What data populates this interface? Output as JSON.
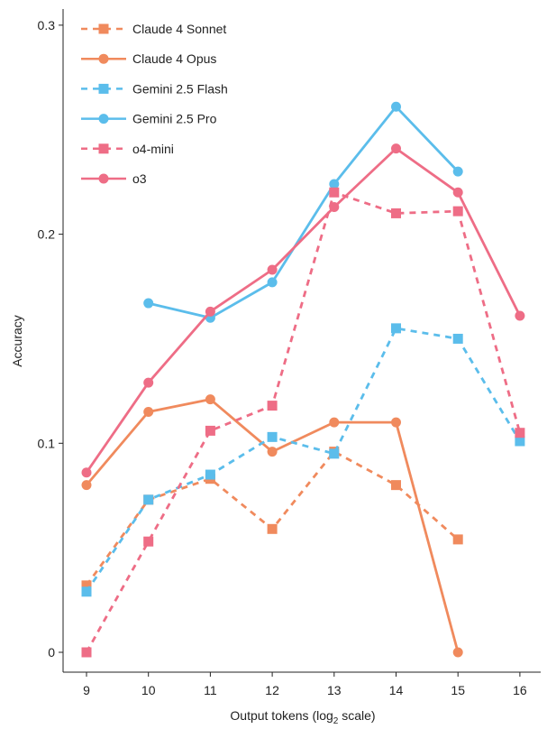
{
  "chart_data": {
    "type": "line",
    "xlabel": "Output tokens (log",
    "xlabel_sub": "2",
    "xlabel_tail": " scale)",
    "ylabel": "Accuracy",
    "x_ticks": [
      9,
      10,
      11,
      12,
      13,
      14,
      15,
      16
    ],
    "y_ticks": [
      0,
      0.1,
      0.2,
      0.3
    ],
    "y_tick_labels": [
      "0",
      "0.1",
      "0.2",
      "0.3"
    ],
    "xlim": [
      9,
      16
    ],
    "ylim": [
      0,
      0.3
    ],
    "grid": false,
    "legend_position": "top-left",
    "series": [
      {
        "name": "Claude 4 Sonnet",
        "color": "#F08A5D",
        "marker": "square",
        "dashed": true,
        "x": [
          9,
          10,
          11,
          12,
          13,
          14,
          15
        ],
        "values": [
          0.032,
          0.073,
          0.083,
          0.059,
          0.096,
          0.08,
          0.054
        ]
      },
      {
        "name": "Claude 4 Opus",
        "color": "#F08A5D",
        "marker": "circle",
        "dashed": false,
        "x": [
          9,
          10,
          11,
          12,
          13,
          14,
          15
        ],
        "values": [
          0.08,
          0.115,
          0.121,
          0.096,
          0.11,
          0.11,
          0.0
        ]
      },
      {
        "name": "Gemini 2.5 Flash",
        "color": "#5BBDEB",
        "marker": "square",
        "dashed": true,
        "x": [
          9,
          10,
          11,
          12,
          13,
          14,
          15,
          16
        ],
        "values": [
          0.029,
          0.073,
          0.085,
          0.103,
          0.095,
          0.155,
          0.15,
          0.101
        ]
      },
      {
        "name": "Gemini 2.5 Pro",
        "color": "#5BBDEB",
        "marker": "circle",
        "dashed": false,
        "x": [
          10,
          11,
          12,
          13,
          14,
          15
        ],
        "values": [
          0.167,
          0.16,
          0.177,
          0.224,
          0.261,
          0.23
        ]
      },
      {
        "name": "o4-mini",
        "color": "#EE6D86",
        "marker": "square",
        "dashed": true,
        "x": [
          9,
          10,
          11,
          12,
          13,
          14,
          15,
          16
        ],
        "values": [
          0.0,
          0.053,
          0.106,
          0.118,
          0.22,
          0.21,
          0.211,
          0.105
        ]
      },
      {
        "name": "o3",
        "color": "#EE6D86",
        "marker": "circle",
        "dashed": false,
        "x": [
          9,
          10,
          11,
          12,
          13,
          14,
          15,
          16
        ],
        "values": [
          0.086,
          0.129,
          0.163,
          0.183,
          0.213,
          0.241,
          0.22,
          0.161
        ]
      }
    ]
  }
}
